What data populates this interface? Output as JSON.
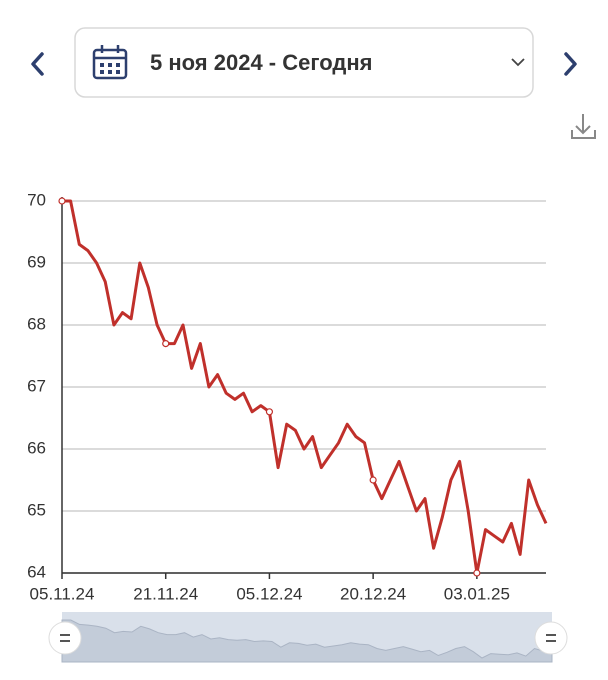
{
  "header": {
    "date_range": "5 ноя 2024 - Сегодня"
  },
  "chart_data": {
    "type": "line",
    "categories": [
      "05.11.24",
      null,
      null,
      null,
      null,
      null,
      null,
      null,
      null,
      null,
      null,
      null,
      "21.11.24",
      null,
      null,
      null,
      null,
      null,
      null,
      null,
      null,
      null,
      null,
      null,
      "05.12.24",
      null,
      null,
      null,
      null,
      null,
      null,
      null,
      null,
      null,
      null,
      null,
      "20.12.24",
      null,
      null,
      null,
      null,
      null,
      null,
      null,
      null,
      null,
      null,
      null,
      "03.01.25",
      null,
      null,
      null,
      null,
      null,
      null,
      null,
      null
    ],
    "values": [
      70.0,
      70.0,
      69.3,
      69.2,
      69.0,
      68.7,
      68.0,
      68.2,
      68.1,
      69.0,
      68.6,
      68.0,
      67.7,
      67.7,
      68.0,
      67.3,
      67.7,
      67.0,
      67.2,
      66.9,
      66.8,
      66.9,
      66.6,
      66.7,
      66.6,
      65.7,
      66.4,
      66.3,
      66.0,
      66.2,
      65.7,
      65.9,
      66.1,
      66.4,
      66.2,
      66.1,
      65.5,
      65.2,
      65.5,
      65.8,
      65.4,
      65.0,
      65.2,
      64.4,
      64.9,
      65.5,
      65.8,
      65.0,
      64.0,
      64.7,
      64.6,
      64.5,
      64.8,
      64.3,
      65.5,
      65.1,
      64.8
    ],
    "color": "#c0302b",
    "ylim": [
      64,
      70
    ],
    "yticks": [
      64,
      65,
      66,
      67,
      68,
      69,
      70
    ],
    "grid": true
  }
}
